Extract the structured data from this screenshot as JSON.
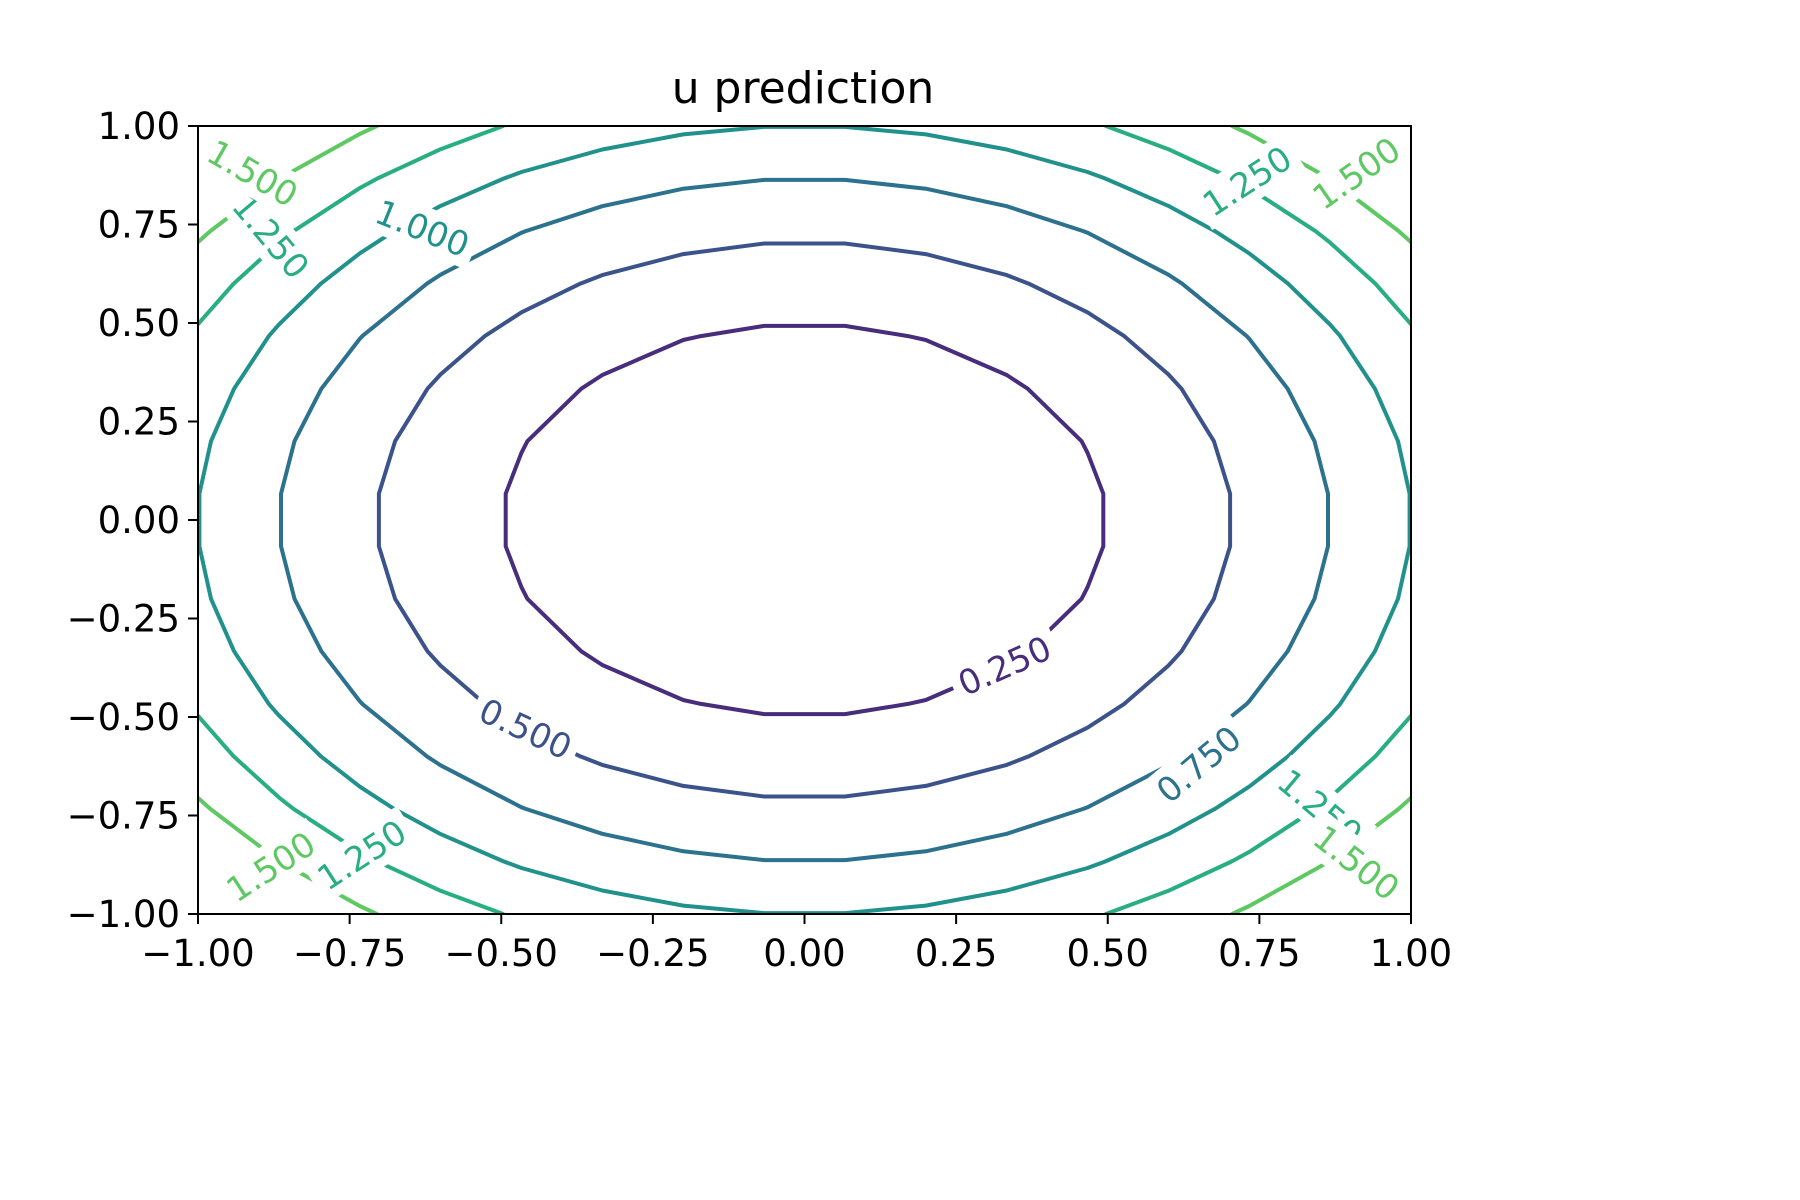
{
  "chart_data": {
    "type": "contour",
    "title": "u prediction",
    "xlabel": "",
    "ylabel": "",
    "xlim": [
      -1.0,
      1.0
    ],
    "ylim": [
      -1.0,
      1.0
    ],
    "x_ticks": [
      "−1.00",
      "−0.75",
      "−0.50",
      "−0.25",
      "0.00",
      "0.25",
      "0.50",
      "0.75",
      "1.00"
    ],
    "y_ticks": [
      "−1.00",
      "−0.75",
      "−0.50",
      "−0.25",
      "0.00",
      "0.25",
      "0.50",
      "0.75",
      "1.00"
    ],
    "x_tick_values": [
      -1.0,
      -0.75,
      -0.5,
      -0.25,
      0.0,
      0.25,
      0.5,
      0.75,
      1.0
    ],
    "y_tick_values": [
      -1.0,
      -0.75,
      -0.5,
      -0.25,
      0.0,
      0.25,
      0.5,
      0.75,
      1.0
    ],
    "field": "u(x, y) ≈ x^2 + y^2",
    "levels": [
      {
        "value": 0.25,
        "label": "0.250",
        "color": "#472d7b"
      },
      {
        "value": 0.5,
        "label": "0.500",
        "color": "#3b528b"
      },
      {
        "value": 0.75,
        "label": "0.750",
        "color": "#2c728e"
      },
      {
        "value": 1.0,
        "label": "1.000",
        "color": "#21918c"
      },
      {
        "value": 1.25,
        "label": "1.250",
        "color": "#28ae80"
      },
      {
        "value": 1.5,
        "label": "1.500",
        "color": "#5ec962"
      }
    ],
    "contour_labels": [
      {
        "label": "0.250",
        "level": 0.25,
        "x": 0.33,
        "y": -0.37,
        "angle": 24
      },
      {
        "label": "0.500",
        "level": 0.5,
        "x": -0.46,
        "y": -0.53,
        "angle": -25
      },
      {
        "label": "0.750",
        "level": 0.75,
        "x": 0.65,
        "y": -0.62,
        "angle": 40
      },
      {
        "label": "1.000",
        "level": 1.0,
        "x": -0.63,
        "y": 0.74,
        "angle": -22
      },
      {
        "label": "1.250",
        "level": 1.25,
        "x": -0.88,
        "y": 0.72,
        "angle": -50
      },
      {
        "label": "1.250",
        "level": 1.25,
        "x": 0.73,
        "y": 0.86,
        "angle": 33
      },
      {
        "label": "1.250",
        "level": 1.25,
        "x": -0.73,
        "y": -0.85,
        "angle": 33
      },
      {
        "label": "1.250",
        "level": 1.25,
        "x": 0.85,
        "y": -0.73,
        "angle": -40
      },
      {
        "label": "1.500",
        "level": 1.5,
        "x": -0.91,
        "y": 0.88,
        "angle": -30
      },
      {
        "label": "1.500",
        "level": 1.5,
        "x": 0.91,
        "y": 0.88,
        "angle": 35
      },
      {
        "label": "1.500",
        "level": 1.5,
        "x": -0.88,
        "y": -0.88,
        "angle": 33
      },
      {
        "label": "1.500",
        "level": 1.5,
        "x": 0.91,
        "y": -0.87,
        "angle": -38
      }
    ],
    "grid": false,
    "legend": "none"
  }
}
